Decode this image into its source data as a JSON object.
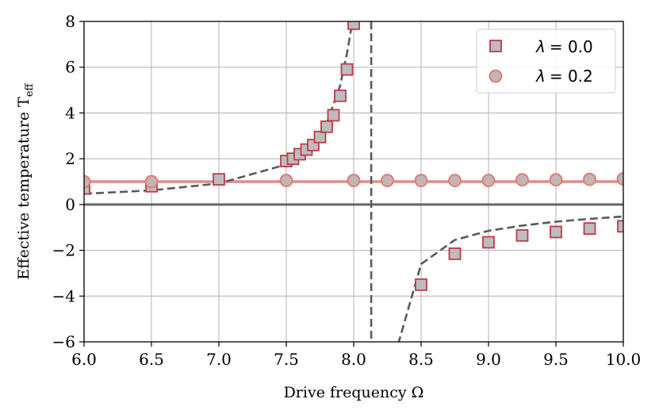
{
  "chart_data": {
    "type": "scatter",
    "xlabel": "Drive frequency Ω",
    "ylabel": "Effective temperature T",
    "ylabel_sub": "eff",
    "xlim": [
      6.0,
      10.0
    ],
    "ylim": [
      -6,
      8
    ],
    "xticks": [
      "6.0",
      "6.5",
      "7.0",
      "7.5",
      "8.0",
      "8.5",
      "9.0",
      "9.5",
      "10.0"
    ],
    "yticks": [
      "−6",
      "−4",
      "−2",
      "0",
      "2",
      "4",
      "6",
      "8"
    ],
    "grid": true,
    "legend_position": "top-right",
    "series": [
      {
        "name": "λ = 0.0",
        "legend_symbol": "λ",
        "legend_value": "= 0.0",
        "marker": "square",
        "fill": "#bdbdbd",
        "edge": "#c0394b",
        "x": [
          6.0,
          6.5,
          7.0,
          7.5,
          7.55,
          7.6,
          7.65,
          7.7,
          7.75,
          7.8,
          7.85,
          7.9,
          7.95,
          8.0,
          8.5,
          8.75,
          9.0,
          9.25,
          9.5,
          9.75,
          10.0
        ],
        "y": [
          0.7,
          0.8,
          1.1,
          1.9,
          2.0,
          2.2,
          2.4,
          2.6,
          2.95,
          3.4,
          3.9,
          4.75,
          5.9,
          7.9,
          -3.5,
          -2.15,
          -1.65,
          -1.35,
          -1.2,
          -1.05,
          -0.95
        ]
      },
      {
        "name": "λ = 0.2",
        "legend_symbol": "λ",
        "legend_value": "= 0.2",
        "marker": "circle",
        "fill": "#c4b4b4",
        "edge": "#e07870",
        "x": [
          6.0,
          6.5,
          7.5,
          8.0,
          8.25,
          8.5,
          8.75,
          9.0,
          9.25,
          9.5,
          9.75,
          10.0
        ],
        "y": [
          1.0,
          1.0,
          1.05,
          1.05,
          1.05,
          1.05,
          1.05,
          1.05,
          1.08,
          1.08,
          1.1,
          1.12
        ]
      }
    ],
    "reference_lines": {
      "horizontal_zero": 0,
      "horizontal_lambda02": 1.0,
      "vertical_resonance": 8.13
    },
    "theory_curve_left": {
      "x": [
        6.0,
        6.5,
        7.0,
        7.5,
        7.6,
        7.7,
        7.8,
        7.9,
        7.95,
        8.0
      ],
      "y": [
        0.47,
        0.62,
        0.92,
        1.75,
        2.1,
        2.65,
        3.55,
        5.2,
        6.6,
        8.3
      ]
    },
    "theory_curve_right": {
      "x": [
        8.33,
        8.5,
        8.75,
        9.0,
        9.25,
        9.5,
        9.75,
        10.0
      ],
      "y": [
        -6.1,
        -2.6,
        -1.55,
        -1.15,
        -0.92,
        -0.75,
        -0.63,
        -0.52
      ]
    },
    "colors": {
      "curve": "#5a5a5a",
      "hline_lambda02": "#d98080",
      "zero_line": "#666666",
      "grid": "#b8b8b8"
    }
  }
}
